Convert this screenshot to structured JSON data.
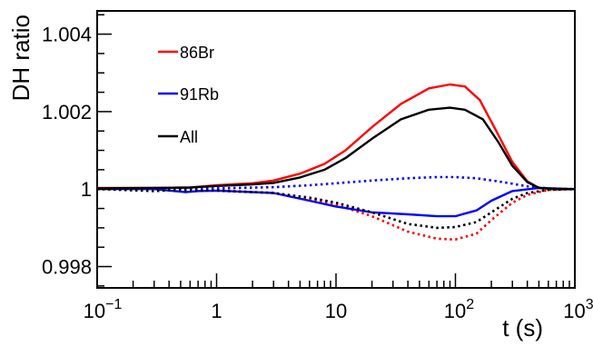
{
  "chart_data": {
    "type": "line",
    "xlabel": "t (s)",
    "ylabel": "DH ratio",
    "xscale": "log",
    "xlim": [
      0.1,
      1000
    ],
    "ylim": [
      0.99745,
      1.0046
    ],
    "grid": false,
    "legend_position": "top-left",
    "x_ticks": [
      {
        "value": 0.1,
        "base": "10",
        "exp": "−1"
      },
      {
        "value": 1,
        "base": "1",
        "exp": ""
      },
      {
        "value": 10,
        "base": "10",
        "exp": ""
      },
      {
        "value": 100,
        "base": "10",
        "exp": "2"
      },
      {
        "value": 1000,
        "base": "10",
        "exp": "3"
      }
    ],
    "y_ticks": [
      {
        "value": 0.998,
        "label": "0.998"
      },
      {
        "value": 1.0,
        "label": "1"
      },
      {
        "value": 1.002,
        "label": "1.002"
      },
      {
        "value": 1.004,
        "label": "1.004"
      }
    ],
    "series": [
      {
        "name": "86Br",
        "color": "#ff0000",
        "style": "solid",
        "points": [
          [
            0.1,
            1.00003
          ],
          [
            0.3,
            1.00003
          ],
          [
            0.6,
            1.00004
          ],
          [
            1,
            1.0001
          ],
          [
            2,
            1.00015
          ],
          [
            3,
            1.00022
          ],
          [
            5,
            1.0004
          ],
          [
            8,
            1.00065
          ],
          [
            12,
            1.001
          ],
          [
            20,
            1.0016
          ],
          [
            35,
            1.0022
          ],
          [
            60,
            1.0026
          ],
          [
            90,
            1.0027
          ],
          [
            120,
            1.00265
          ],
          [
            160,
            1.0023
          ],
          [
            220,
            1.0015
          ],
          [
            300,
            1.0007
          ],
          [
            400,
            1.0002
          ],
          [
            500,
            1.00003
          ],
          [
            700,
            1.0
          ],
          [
            1000,
            1.0
          ]
        ]
      },
      {
        "name": "86Br",
        "color": "#ff0000",
        "style": "dotted",
        "points": [
          [
            0.1,
            1.0
          ],
          [
            0.5,
            0.99998
          ],
          [
            1,
            0.99997
          ],
          [
            3,
            0.9999
          ],
          [
            6,
            0.99975
          ],
          [
            10,
            0.9996
          ],
          [
            20,
            0.9993
          ],
          [
            40,
            0.9989
          ],
          [
            70,
            0.99872
          ],
          [
            100,
            0.9987
          ],
          [
            150,
            0.99885
          ],
          [
            200,
            0.9992
          ],
          [
            300,
            0.99965
          ],
          [
            400,
            0.99985
          ],
          [
            600,
            0.99998
          ],
          [
            1000,
            1.0
          ]
        ]
      },
      {
        "name": "91Rb",
        "color": "#0000ff",
        "style": "solid",
        "points": [
          [
            0.1,
            1.0
          ],
          [
            0.3,
            1.0
          ],
          [
            0.55,
            0.99992
          ],
          [
            0.7,
            0.99995
          ],
          [
            1,
            0.99996
          ],
          [
            3,
            0.9999
          ],
          [
            6,
            0.9997
          ],
          [
            10,
            0.99955
          ],
          [
            20,
            0.9994
          ],
          [
            40,
            0.99935
          ],
          [
            70,
            0.9993
          ],
          [
            100,
            0.9993
          ],
          [
            150,
            0.99945
          ],
          [
            200,
            0.9997
          ],
          [
            300,
            0.99995
          ],
          [
            500,
            1.00003
          ],
          [
            1000,
            1.0
          ]
        ]
      },
      {
        "name": "91Rb",
        "color": "#0000ff",
        "style": "dotted",
        "points": [
          [
            0.1,
            1.0
          ],
          [
            0.5,
            1.0
          ],
          [
            1,
            1.00002
          ],
          [
            3,
            1.00005
          ],
          [
            6,
            1.0001
          ],
          [
            10,
            1.00015
          ],
          [
            20,
            1.00022
          ],
          [
            40,
            1.00028
          ],
          [
            70,
            1.00031
          ],
          [
            100,
            1.00031
          ],
          [
            150,
            1.00028
          ],
          [
            250,
            1.00018
          ],
          [
            400,
            1.00007
          ],
          [
            600,
            1.00002
          ],
          [
            1000,
            1.0
          ]
        ]
      },
      {
        "name": "All",
        "color": "#000000",
        "style": "solid",
        "points": [
          [
            0.1,
            1.00002
          ],
          [
            0.3,
            1.00003
          ],
          [
            0.6,
            1.00004
          ],
          [
            1,
            1.00008
          ],
          [
            2,
            1.00012
          ],
          [
            3,
            1.00016
          ],
          [
            5,
            1.0003
          ],
          [
            8,
            1.0005
          ],
          [
            12,
            1.0008
          ],
          [
            20,
            1.0013
          ],
          [
            35,
            1.0018
          ],
          [
            60,
            1.00205
          ],
          [
            90,
            1.0021
          ],
          [
            120,
            1.00205
          ],
          [
            170,
            1.0018
          ],
          [
            230,
            1.0012
          ],
          [
            300,
            1.0006
          ],
          [
            400,
            1.00018
          ],
          [
            500,
            1.00003
          ],
          [
            700,
            1.0
          ],
          [
            1000,
            1.0
          ]
        ]
      },
      {
        "name": "All",
        "color": "#000000",
        "style": "dotted",
        "points": [
          [
            0.1,
            1.0
          ],
          [
            0.3,
            0.99995
          ],
          [
            0.5,
            0.99998
          ],
          [
            1,
            0.99996
          ],
          [
            3,
            0.9999
          ],
          [
            6,
            0.99978
          ],
          [
            10,
            0.99965
          ],
          [
            20,
            0.9994
          ],
          [
            40,
            0.9991
          ],
          [
            70,
            0.999
          ],
          [
            100,
            0.99902
          ],
          [
            150,
            0.99915
          ],
          [
            200,
            0.9994
          ],
          [
            300,
            0.99975
          ],
          [
            400,
            0.9999
          ],
          [
            600,
            0.99998
          ],
          [
            1000,
            1.0
          ]
        ]
      }
    ],
    "legend": [
      {
        "label": "86Br",
        "color": "#ff0000"
      },
      {
        "label": "91Rb",
        "color": "#0000ff"
      },
      {
        "label": "All",
        "color": "#000000"
      }
    ]
  }
}
